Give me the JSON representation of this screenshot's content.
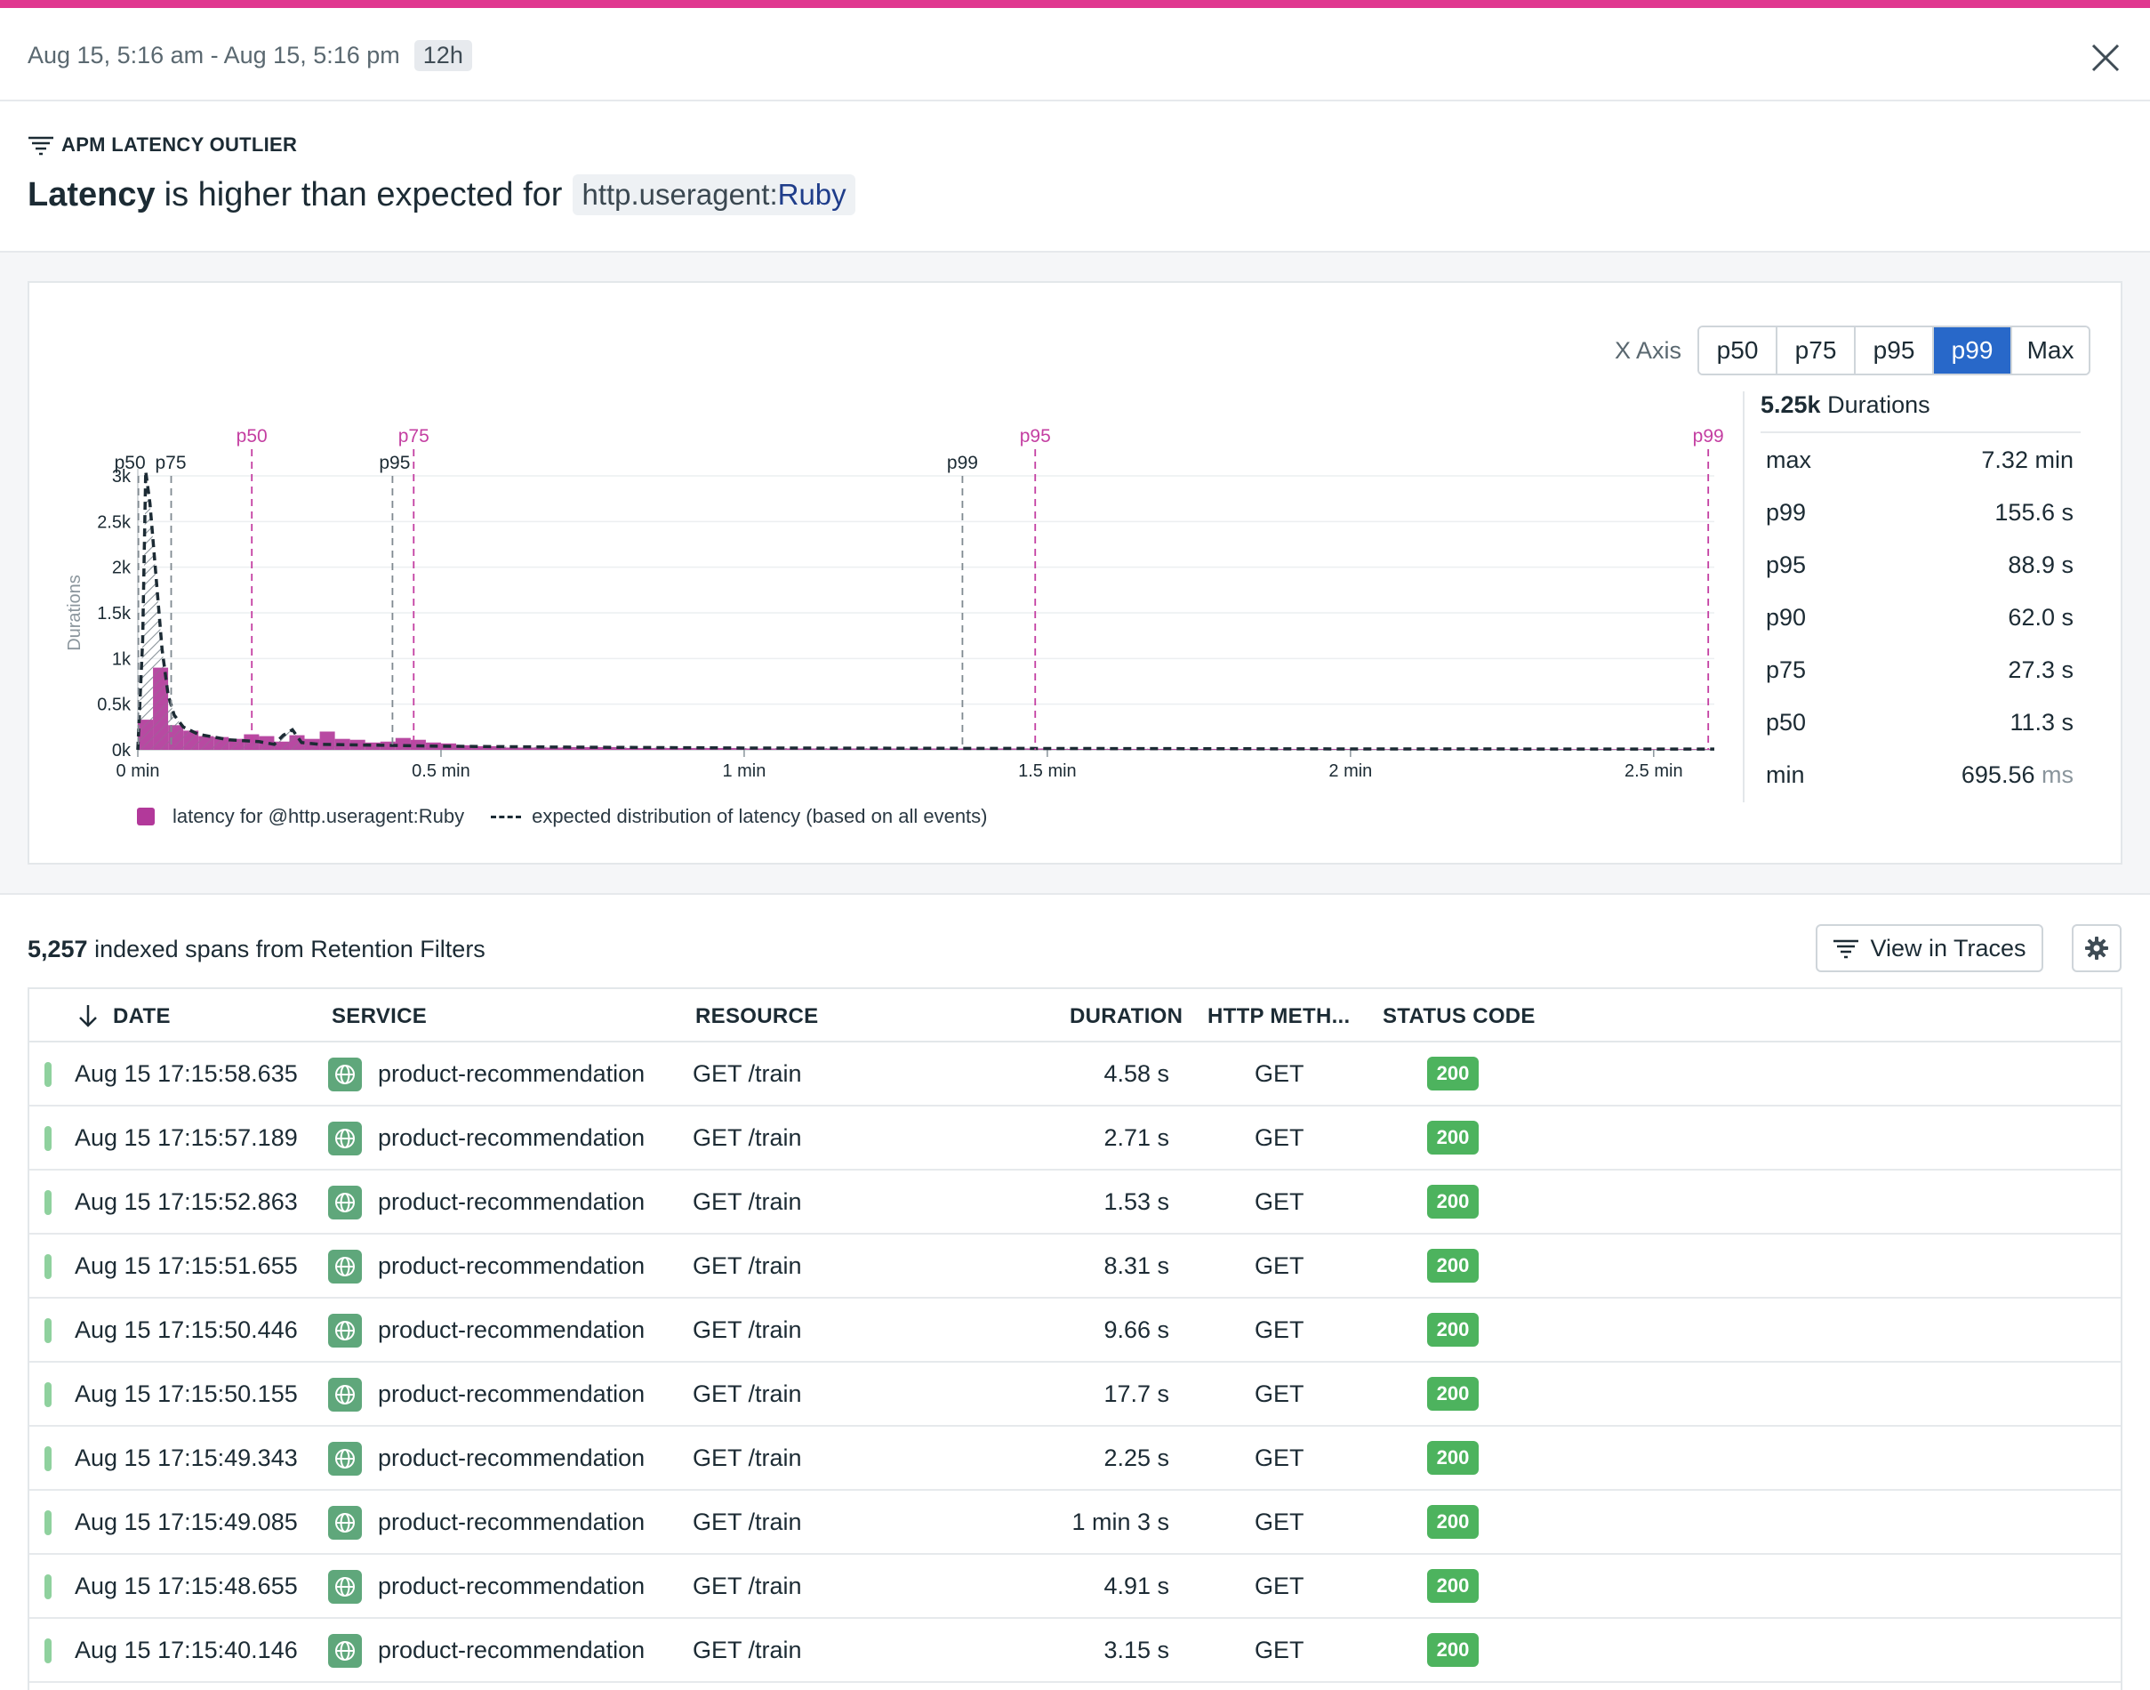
{
  "header": {
    "time_range": "Aug 15, 5:16 am - Aug 15, 5:16 pm",
    "range_badge": "12h"
  },
  "insight": {
    "tag": "APM LATENCY OUTLIER",
    "metric": "Latency",
    "phrase": "is higher than expected for",
    "facet_key": "http.useragent:",
    "facet_value": "Ruby"
  },
  "xaxis": {
    "label": "X Axis",
    "options": [
      "p50",
      "p75",
      "p95",
      "p99",
      "Max"
    ],
    "selected": "p99"
  },
  "stats": {
    "count": "5.25k",
    "count_label": "Durations",
    "rows": [
      {
        "label": "max",
        "value": "7.32",
        "unit": "min"
      },
      {
        "label": "p99",
        "value": "155.6",
        "unit": "s"
      },
      {
        "label": "p95",
        "value": "88.9",
        "unit": "s"
      },
      {
        "label": "p90",
        "value": "62.0",
        "unit": "s"
      },
      {
        "label": "p75",
        "value": "27.3",
        "unit": "s"
      },
      {
        "label": "p50",
        "value": "11.3",
        "unit": "s"
      },
      {
        "label": "min",
        "value": "695.56",
        "unit": "ms"
      }
    ]
  },
  "chart_data": {
    "type": "bar",
    "ylabel": "Durations",
    "x_unit": "min",
    "xlim": [
      0,
      2.6
    ],
    "ylim": [
      0,
      3000
    ],
    "x_ticks": [
      {
        "v": 0,
        "label": "0 min"
      },
      {
        "v": 0.5,
        "label": "0.5 min"
      },
      {
        "v": 1,
        "label": "1 min"
      },
      {
        "v": 1.5,
        "label": "1.5 min"
      },
      {
        "v": 2,
        "label": "2 min"
      },
      {
        "v": 2.5,
        "label": "2.5 min"
      }
    ],
    "y_ticks": [
      {
        "v": 0,
        "label": "0k"
      },
      {
        "v": 500,
        "label": "0.5k"
      },
      {
        "v": 1000,
        "label": "1k"
      },
      {
        "v": 1500,
        "label": "1.5k"
      },
      {
        "v": 2000,
        "label": "2k"
      },
      {
        "v": 2500,
        "label": "2.5k"
      },
      {
        "v": 3000,
        "label": "3k"
      }
    ],
    "series": [
      {
        "name": "latency for @http.useragent:Ruby",
        "color": "#b2399a",
        "bins": [
          [
            0,
            0.025,
            330
          ],
          [
            0.025,
            0.05,
            900
          ],
          [
            0.05,
            0.075,
            270
          ],
          [
            0.075,
            0.1,
            210
          ],
          [
            0.1,
            0.125,
            150
          ],
          [
            0.125,
            0.15,
            140
          ],
          [
            0.15,
            0.175,
            120
          ],
          [
            0.175,
            0.2,
            170
          ],
          [
            0.2,
            0.225,
            150
          ],
          [
            0.225,
            0.25,
            90
          ],
          [
            0.25,
            0.275,
            160
          ],
          [
            0.275,
            0.3,
            120
          ],
          [
            0.3,
            0.325,
            200
          ],
          [
            0.325,
            0.35,
            120
          ],
          [
            0.35,
            0.375,
            110
          ],
          [
            0.375,
            0.4,
            80
          ],
          [
            0.4,
            0.425,
            90
          ],
          [
            0.425,
            0.45,
            130
          ],
          [
            0.45,
            0.475,
            110
          ],
          [
            0.475,
            0.5,
            80
          ],
          [
            0.5,
            0.525,
            70
          ],
          [
            0.525,
            0.55,
            50
          ],
          [
            0.55,
            0.6,
            40
          ],
          [
            0.6,
            0.7,
            25
          ],
          [
            0.7,
            0.8,
            30
          ],
          [
            0.8,
            1.0,
            20
          ],
          [
            1.0,
            1.5,
            15
          ],
          [
            1.5,
            2.0,
            10
          ],
          [
            2.0,
            2.6,
            8
          ]
        ]
      },
      {
        "name": "expected distribution of latency (based on all events)",
        "color": "#1c2b34",
        "style": "dashed",
        "points": [
          [
            0,
            0
          ],
          [
            0.008,
            1200
          ],
          [
            0.013,
            3050
          ],
          [
            0.02,
            2700
          ],
          [
            0.03,
            1900
          ],
          [
            0.04,
            1100
          ],
          [
            0.05,
            600
          ],
          [
            0.06,
            380
          ],
          [
            0.075,
            250
          ],
          [
            0.1,
            170
          ],
          [
            0.15,
            110
          ],
          [
            0.2,
            90
          ],
          [
            0.225,
            60
          ],
          [
            0.24,
            160
          ],
          [
            0.255,
            220
          ],
          [
            0.27,
            80
          ],
          [
            0.3,
            60
          ],
          [
            0.4,
            50
          ],
          [
            0.5,
            40
          ],
          [
            0.7,
            30
          ],
          [
            1.0,
            20
          ],
          [
            1.5,
            15
          ],
          [
            2.0,
            10
          ],
          [
            2.6,
            8
          ]
        ]
      }
    ],
    "markers": [
      {
        "label": "p50",
        "x": 0.001,
        "group": "expected"
      },
      {
        "label": "p75",
        "x": 0.055,
        "group": "expected"
      },
      {
        "label": "p95",
        "x": 0.42,
        "group": "expected"
      },
      {
        "label": "p99",
        "x": 1.36,
        "group": "expected"
      },
      {
        "label": "p50",
        "x": 0.188,
        "group": "observed"
      },
      {
        "label": "p75",
        "x": 0.455,
        "group": "observed"
      },
      {
        "label": "p95",
        "x": 1.48,
        "group": "observed"
      },
      {
        "label": "p99",
        "x": 2.59,
        "group": "observed"
      }
    ],
    "colors": {
      "observed": "#b2399a",
      "expected": "#1c2b34",
      "marker_observed": "#c43fa2",
      "marker_expected": "#808a91"
    }
  },
  "legend": {
    "observed": "latency for @http.useragent:Ruby",
    "expected": "expected distribution of latency (based on all events)"
  },
  "list": {
    "count": "5,257",
    "count_label": "indexed spans from Retention Filters",
    "view_button": "View in Traces",
    "columns": [
      "DATE",
      "SERVICE",
      "RESOURCE",
      "DURATION",
      "HTTP METH...",
      "STATUS CODE"
    ],
    "rows": [
      {
        "date": "Aug 15 17:15:58.635",
        "service": "product-recommendation",
        "resource": "GET /train",
        "duration": "4.58 s",
        "method": "GET",
        "status": "200"
      },
      {
        "date": "Aug 15 17:15:57.189",
        "service": "product-recommendation",
        "resource": "GET /train",
        "duration": "2.71 s",
        "method": "GET",
        "status": "200"
      },
      {
        "date": "Aug 15 17:15:52.863",
        "service": "product-recommendation",
        "resource": "GET /train",
        "duration": "1.53 s",
        "method": "GET",
        "status": "200"
      },
      {
        "date": "Aug 15 17:15:51.655",
        "service": "product-recommendation",
        "resource": "GET /train",
        "duration": "8.31 s",
        "method": "GET",
        "status": "200"
      },
      {
        "date": "Aug 15 17:15:50.446",
        "service": "product-recommendation",
        "resource": "GET /train",
        "duration": "9.66 s",
        "method": "GET",
        "status": "200"
      },
      {
        "date": "Aug 15 17:15:50.155",
        "service": "product-recommendation",
        "resource": "GET /train",
        "duration": "17.7 s",
        "method": "GET",
        "status": "200"
      },
      {
        "date": "Aug 15 17:15:49.343",
        "service": "product-recommendation",
        "resource": "GET /train",
        "duration": "2.25 s",
        "method": "GET",
        "status": "200"
      },
      {
        "date": "Aug 15 17:15:49.085",
        "service": "product-recommendation",
        "resource": "GET /train",
        "duration": "1 min 3 s",
        "method": "GET",
        "status": "200"
      },
      {
        "date": "Aug 15 17:15:48.655",
        "service": "product-recommendation",
        "resource": "GET /train",
        "duration": "4.91 s",
        "method": "GET",
        "status": "200"
      },
      {
        "date": "Aug 15 17:15:40.146",
        "service": "product-recommendation",
        "resource": "GET /train",
        "duration": "3.15 s",
        "method": "GET",
        "status": "200"
      }
    ]
  },
  "icons": {
    "close": "close-icon",
    "filter": "filter-lines-icon",
    "sort": "arrow-down-icon",
    "service": "globe-icon",
    "settings": "gear-icon"
  }
}
